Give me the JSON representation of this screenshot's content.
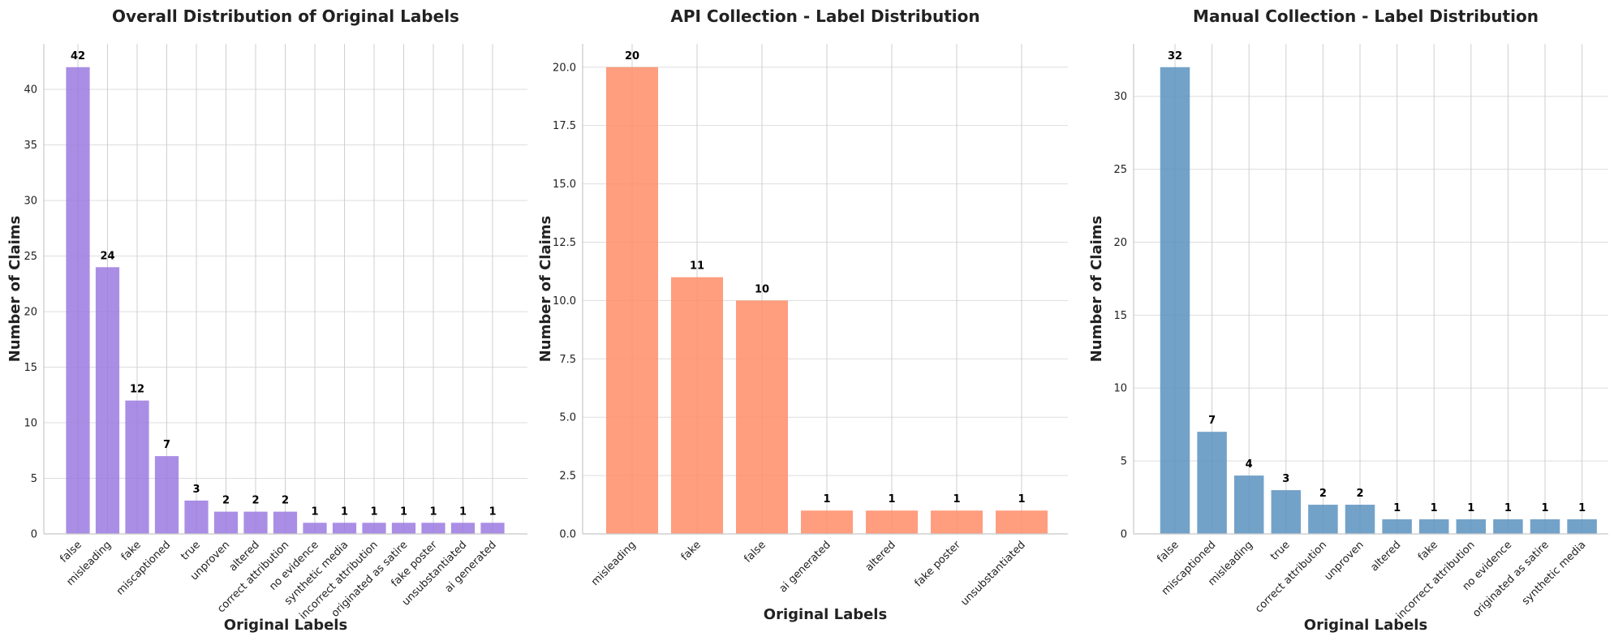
{
  "chart_data": [
    {
      "type": "bar",
      "title": "Overall Distribution of Original Labels",
      "xlabel": "Original Labels",
      "ylabel": "Number of Claims",
      "categories": [
        "false",
        "misleading",
        "fake",
        "miscaptioned",
        "true",
        "unproven",
        "altered",
        "correct attribution",
        "no evidence",
        "synthetic media",
        "incorrect attribution",
        "originated as satire",
        "fake poster",
        "unsubstantiated",
        "ai generated"
      ],
      "values": [
        42,
        24,
        12,
        7,
        3,
        2,
        2,
        2,
        1,
        1,
        1,
        1,
        1,
        1,
        1
      ],
      "ylim": [
        0,
        44.1
      ],
      "yticks": [
        0,
        5,
        10,
        15,
        20,
        25,
        30,
        35,
        40
      ],
      "ytick_labels": [
        "0",
        "5",
        "10",
        "15",
        "20",
        "25",
        "30",
        "35",
        "40"
      ],
      "color": "#9b7ae0",
      "grid": true,
      "rotate_labels": true
    },
    {
      "type": "bar",
      "title": "API Collection - Label Distribution",
      "xlabel": "Original Labels",
      "ylabel": "Number of Claims",
      "categories": [
        "misleading",
        "fake",
        "false",
        "ai generated",
        "altered",
        "fake poster",
        "unsubstantiated"
      ],
      "values": [
        20,
        11,
        10,
        1,
        1,
        1,
        1
      ],
      "ylim": [
        0,
        21
      ],
      "yticks": [
        0,
        2.5,
        5,
        7.5,
        10,
        12.5,
        15,
        17.5,
        20
      ],
      "ytick_labels": [
        "0.0",
        "2.5",
        "5.0",
        "7.5",
        "10.0",
        "12.5",
        "15.0",
        "17.5",
        "20.0"
      ],
      "color": "#ff8c69",
      "grid": true,
      "rotate_labels": true
    },
    {
      "type": "bar",
      "title": "Manual Collection - Label Distribution",
      "xlabel": "Original Labels",
      "ylabel": "Number of Claims",
      "categories": [
        "false",
        "miscaptioned",
        "misleading",
        "true",
        "correct attribution",
        "unproven",
        "altered",
        "fake",
        "incorrect attribution",
        "no evidence",
        "originated as satire",
        "synthetic media"
      ],
      "values": [
        32,
        7,
        4,
        3,
        2,
        2,
        1,
        1,
        1,
        1,
        1,
        1
      ],
      "ylim": [
        0,
        33.6
      ],
      "yticks": [
        0,
        5,
        10,
        15,
        20,
        25,
        30
      ],
      "ytick_labels": [
        "0",
        "5",
        "10",
        "15",
        "20",
        "25",
        "30"
      ],
      "color": "#5b92c0",
      "grid": true,
      "rotate_labels": true
    }
  ]
}
